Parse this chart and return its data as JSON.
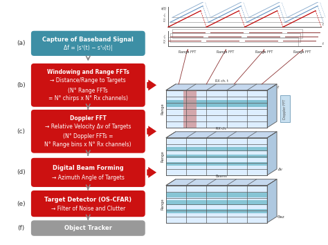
{
  "bg_color": "#ffffff",
  "teal_color": "#3d8fa5",
  "red_color": "#cc1111",
  "gray_color": "#999999",
  "arrow_gray": "#888888",
  "cube_front": "#ddeeff",
  "cube_top": "#c5d8ee",
  "cube_right": "#aec8e0",
  "cube_teal_row": "#5aafbf",
  "cube_pink_col": "#d09090",
  "steps": [
    {
      "label": "(a)",
      "l1": "Capture of Baseband Signal",
      "l2": "Δf = |sᵀ(t) − sᵀ₀(t)|",
      "type": "teal"
    },
    {
      "label": "(b)",
      "l1": "Windowing and Range FFTs",
      "l2": "→ Distance/Range to Targets",
      "l3": "(N° Range FFTs",
      "l4": "= N° chirps x N° Rx channels)",
      "type": "red"
    },
    {
      "label": "(c)",
      "l1": "Doppler FFT",
      "l2": "→ Relative Velocity Δv of Targets",
      "l3": "(N° Doppler FFTs =",
      "l4": "N° Range bins x N° Rx channels)",
      "type": "red"
    },
    {
      "label": "(d)",
      "l1": "Digital Beam Forming",
      "l2": "→ Azimuth Angle of Targets",
      "type": "red"
    },
    {
      "label": "(e)",
      "l1": "Target Detector (OS-CFAR)",
      "l2": "→ Filter of Noise and Clutter",
      "type": "red"
    },
    {
      "label": "(f)",
      "l1": "Object Tracker",
      "type": "gray"
    }
  ]
}
